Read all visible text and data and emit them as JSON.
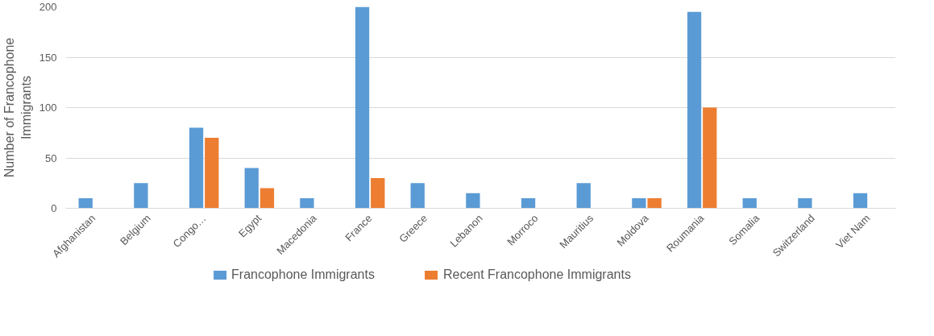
{
  "chart_data": {
    "type": "bar",
    "ylabel": "Number of Francophone Immigrants",
    "categories": [
      "Afghanistan",
      "Belgium",
      "Congo…",
      "Egypt",
      "Macedonia",
      "France",
      "Greece",
      "Lebanon",
      "Morroco",
      "Mauritius",
      "Moldova",
      "Roumania",
      "Somalia",
      "Switzerland",
      "Viet Nam"
    ],
    "series": [
      {
        "name": "Francophone Immigrants",
        "color": "#5b9bd5",
        "values": [
          10,
          25,
          80,
          40,
          10,
          200,
          25,
          15,
          10,
          25,
          10,
          195,
          10,
          10,
          15
        ]
      },
      {
        "name": "Recent Francophone Immigrants",
        "color": "#ed7d31",
        "values": [
          null,
          null,
          70,
          20,
          null,
          30,
          null,
          null,
          null,
          null,
          10,
          100,
          null,
          null,
          null
        ]
      }
    ],
    "ylim": [
      0,
      200
    ],
    "yticks": [
      0,
      50,
      100,
      150,
      200
    ],
    "grid": "y",
    "legend": "bottom"
  }
}
